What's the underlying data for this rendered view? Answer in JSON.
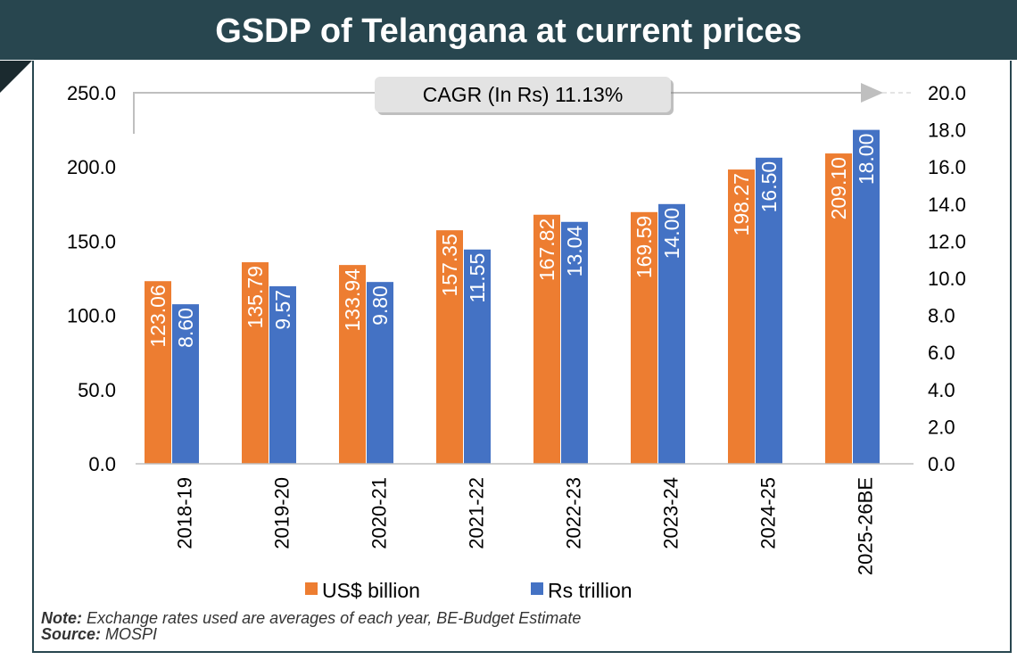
{
  "title": "GSDP of Telangana at current prices",
  "chart_data": {
    "type": "bar",
    "categories": [
      "2018-19",
      "2019-20",
      "2020-21",
      "2021-22",
      "2022-23",
      "2023-24",
      "2024-25",
      "2025-26BE"
    ],
    "series": [
      {
        "name": "US$ billion",
        "axis": "left",
        "color": "#ed7d31",
        "values": [
          123.06,
          135.79,
          133.94,
          157.35,
          167.82,
          169.59,
          198.27,
          209.1
        ]
      },
      {
        "name": "Rs trillion",
        "axis": "right",
        "color": "#4472c4",
        "values": [
          8.6,
          9.57,
          9.8,
          11.55,
          13.04,
          14.0,
          16.5,
          18.0
        ]
      }
    ],
    "ylim_left": [
      0,
      250
    ],
    "yticks_left": [
      "0.0",
      "50.0",
      "100.0",
      "150.0",
      "200.0",
      "250.0"
    ],
    "ylim_right": [
      0,
      20
    ],
    "yticks_right": [
      "0.0",
      "2.0",
      "4.0",
      "6.0",
      "8.0",
      "10.0",
      "12.0",
      "14.0",
      "16.0",
      "18.0",
      "20.0"
    ],
    "annotation": "CAGR (In Rs) 11.13%",
    "legend": "bottom"
  },
  "note_label": "Note:",
  "note_text": " Exchange rates used are averages of each year, BE-Budget Estimate",
  "source_label": "Source:",
  "source_text": " MOSPI"
}
